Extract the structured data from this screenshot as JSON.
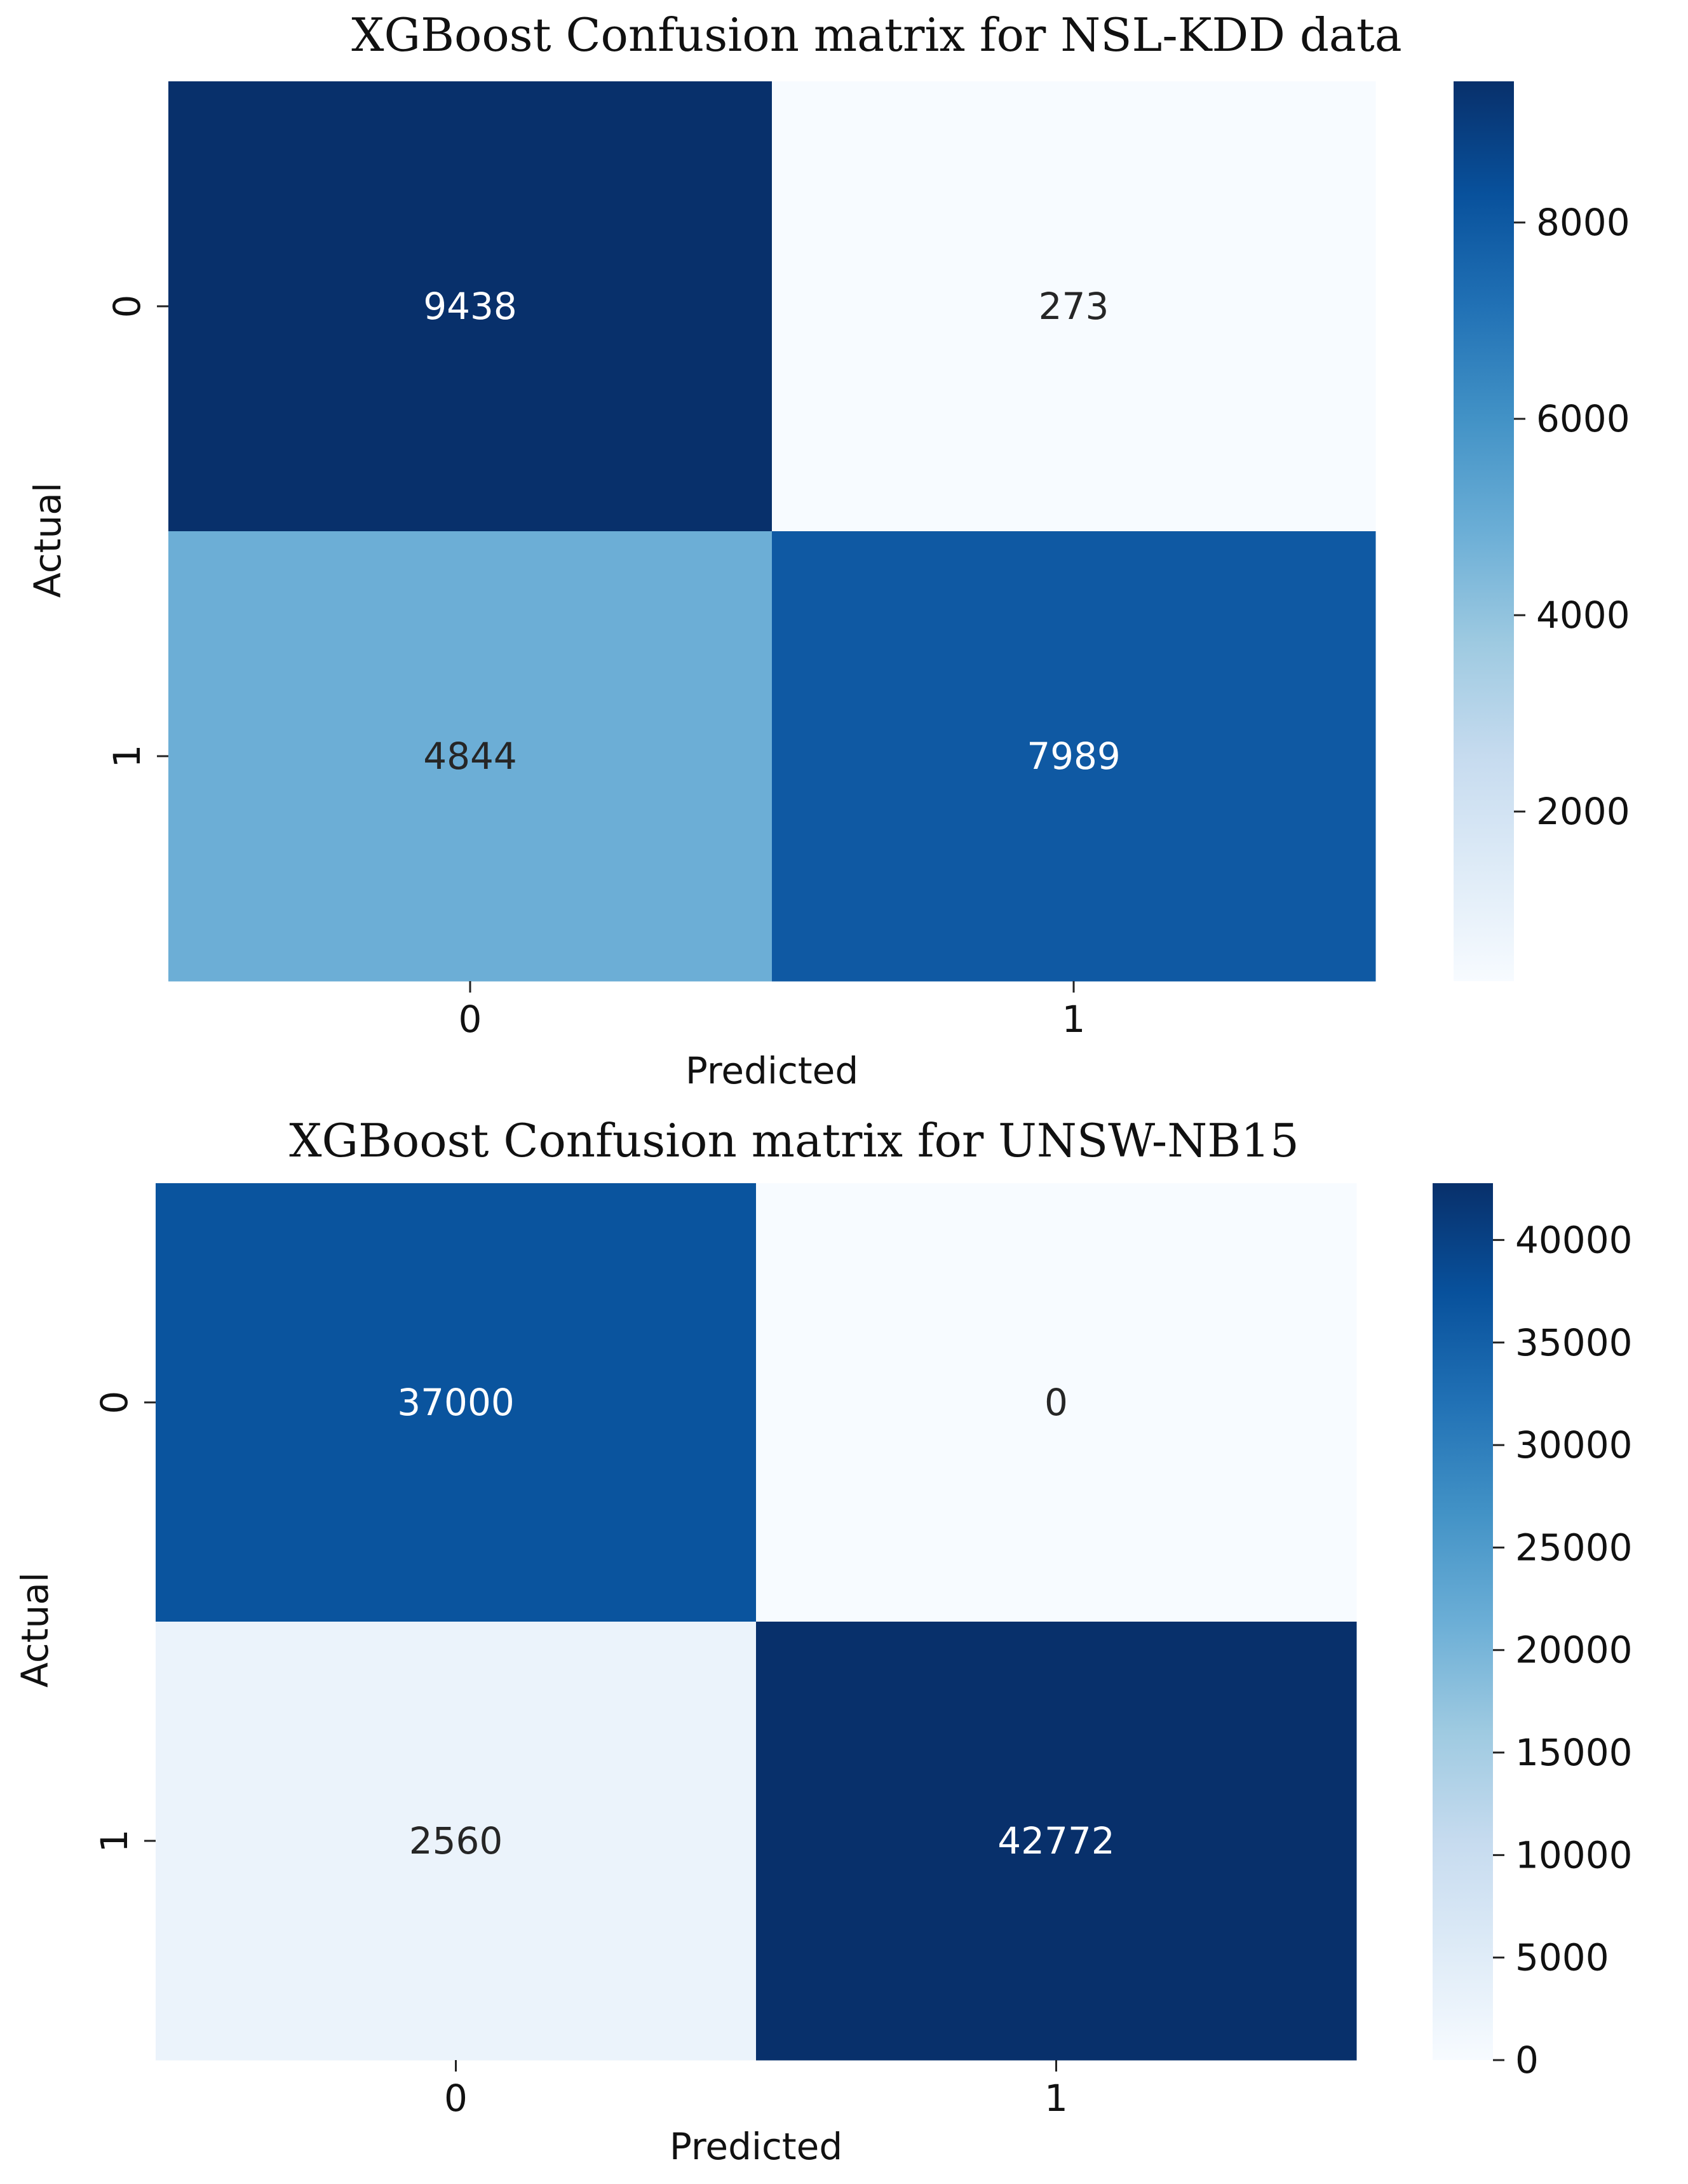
{
  "chart_data": [
    {
      "type": "heatmap",
      "title": "XGBoost Confusion matrix for NSL-KDD data",
      "xlabel": "Predicted",
      "ylabel": "Actual",
      "x_categories": [
        "0",
        "1"
      ],
      "y_categories": [
        "0",
        "1"
      ],
      "values": [
        [
          9438,
          273
        ],
        [
          4844,
          7989
        ]
      ],
      "colormap": "Blues",
      "color_range": [
        273,
        9438
      ],
      "colorbar_ticks": [
        2000,
        4000,
        6000,
        8000
      ],
      "colorbar_tick_labels": [
        "2000",
        "4000",
        "6000",
        "8000"
      ],
      "grid": false,
      "legend": "colorbar-right"
    },
    {
      "type": "heatmap",
      "title": "XGBoost Confusion matrix for UNSW-NB15",
      "xlabel": "Predicted",
      "ylabel": "Actual",
      "x_categories": [
        "0",
        "1"
      ],
      "y_categories": [
        "0",
        "1"
      ],
      "values": [
        [
          37000,
          0
        ],
        [
          2560,
          42772
        ]
      ],
      "colormap": "Blues",
      "color_range": [
        0,
        42772
      ],
      "colorbar_ticks": [
        0,
        5000,
        10000,
        15000,
        20000,
        25000,
        30000,
        35000,
        40000
      ],
      "colorbar_tick_labels": [
        "0",
        "5000",
        "10000",
        "15000",
        "20000",
        "25000",
        "30000",
        "35000",
        "40000"
      ],
      "grid": false,
      "legend": "colorbar-right"
    }
  ],
  "colors": {
    "blues_scale": [
      "#f7fbff",
      "#deebf7",
      "#c6dbef",
      "#9ecae1",
      "#6baed6",
      "#4292c6",
      "#2171b5",
      "#08519c",
      "#08306b"
    ],
    "text_dark": "#262626",
    "text_light": "#ffffff"
  }
}
